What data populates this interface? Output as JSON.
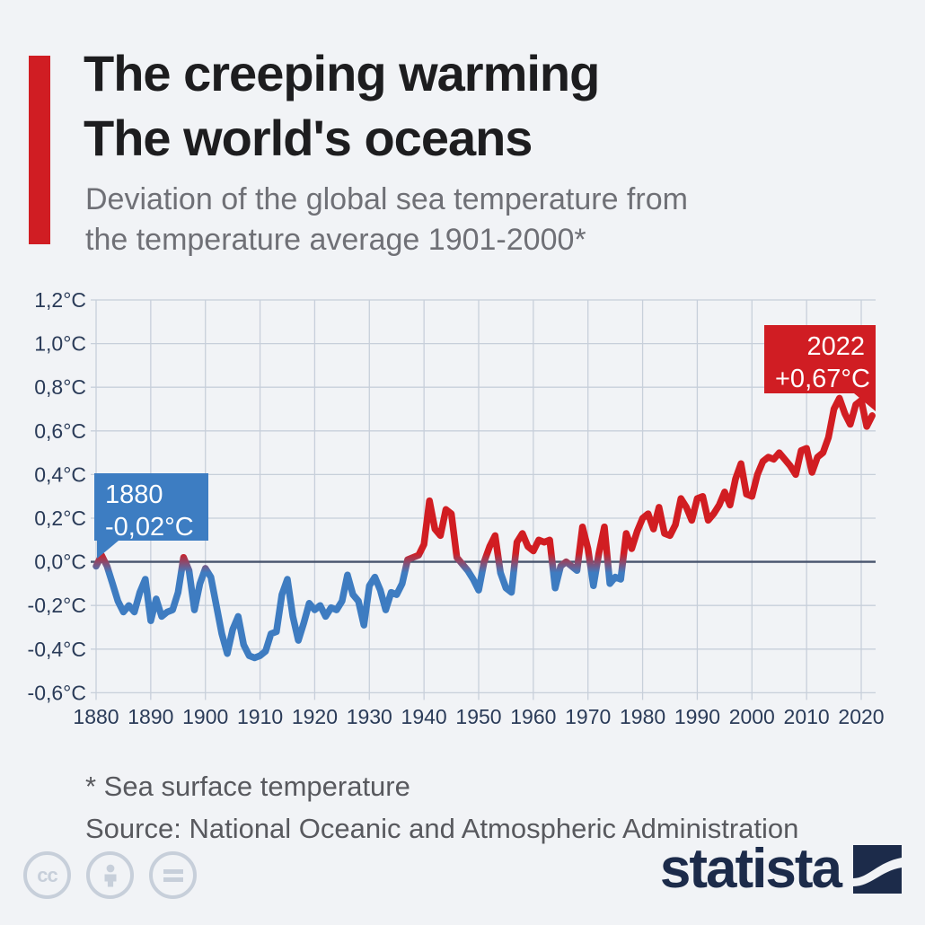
{
  "header": {
    "title_line1": "The creeping warming",
    "title_line2": "The world's oceans",
    "subtitle_line1": "Deviation of the global sea temperature from",
    "subtitle_line2": "the temperature average 1901-2000*"
  },
  "chart_data": {
    "type": "line",
    "title": "Deviation of the global sea temperature from the temperature average 1901-2000",
    "unit": "°C",
    "x_start_year": 1880,
    "x_end_year": 2022,
    "x_ticks": [
      1880,
      1890,
      1900,
      1910,
      1920,
      1930,
      1940,
      1950,
      1960,
      1970,
      1980,
      1990,
      2000,
      2010,
      2020
    ],
    "y_tick_labels": [
      "1,2°C",
      "1,0°C",
      "0,8°C",
      "0,6°C",
      "0,4°C",
      "0,2°C",
      "0,0°C",
      "-0,2°C",
      "-0,4°C",
      "-0,6°C"
    ],
    "y_tick_values": [
      1.2,
      1.0,
      0.8,
      0.6,
      0.4,
      0.2,
      0.0,
      -0.2,
      -0.4,
      -0.6
    ],
    "ylim": [
      -0.6,
      1.2
    ],
    "grid": true,
    "line_color_above_zero": "#d11d22",
    "line_color_below_zero": "#3e7cc1",
    "values": [
      -0.02,
      0.03,
      -0.02,
      -0.1,
      -0.18,
      -0.23,
      -0.2,
      -0.23,
      -0.14,
      -0.08,
      -0.27,
      -0.17,
      -0.25,
      -0.23,
      -0.22,
      -0.14,
      0.02,
      -0.04,
      -0.22,
      -0.1,
      -0.03,
      -0.07,
      -0.2,
      -0.33,
      -0.42,
      -0.31,
      -0.25,
      -0.38,
      -0.43,
      -0.44,
      -0.43,
      -0.41,
      -0.33,
      -0.32,
      -0.15,
      -0.08,
      -0.25,
      -0.36,
      -0.28,
      -0.19,
      -0.22,
      -0.2,
      -0.25,
      -0.21,
      -0.22,
      -0.18,
      -0.06,
      -0.15,
      -0.18,
      -0.29,
      -0.11,
      -0.07,
      -0.13,
      -0.22,
      -0.14,
      -0.15,
      -0.1,
      0.01,
      0.02,
      0.03,
      0.08,
      0.28,
      0.15,
      0.12,
      0.24,
      0.22,
      0.02,
      -0.01,
      -0.04,
      -0.08,
      -0.13,
      0.0,
      0.07,
      0.12,
      -0.05,
      -0.12,
      -0.14,
      0.09,
      0.13,
      0.07,
      0.05,
      0.1,
      0.09,
      0.1,
      -0.12,
      -0.02,
      0.0,
      -0.02,
      -0.04,
      0.16,
      0.06,
      -0.11,
      0.04,
      0.16,
      -0.1,
      -0.07,
      -0.08,
      0.13,
      0.06,
      0.14,
      0.2,
      0.22,
      0.15,
      0.25,
      0.13,
      0.12,
      0.17,
      0.29,
      0.25,
      0.19,
      0.29,
      0.3,
      0.19,
      0.22,
      0.26,
      0.32,
      0.26,
      0.38,
      0.45,
      0.31,
      0.3,
      0.4,
      0.46,
      0.48,
      0.47,
      0.5,
      0.47,
      0.44,
      0.4,
      0.51,
      0.52,
      0.41,
      0.48,
      0.5,
      0.57,
      0.7,
      0.75,
      0.68,
      0.63,
      0.72,
      0.74,
      0.62,
      0.67
    ],
    "annotations": {
      "start": {
        "year": "1880",
        "value_label": "-0,02°C"
      },
      "end": {
        "year": "2022",
        "value_label": "+0,67°C"
      }
    }
  },
  "footer": {
    "note": "* Sea surface temperature",
    "source": "Source: National Oceanic and Atmospheric Administration"
  },
  "branding": {
    "logo_text": "statista"
  },
  "license": {
    "icons": [
      "cc",
      "by",
      "nd"
    ]
  }
}
